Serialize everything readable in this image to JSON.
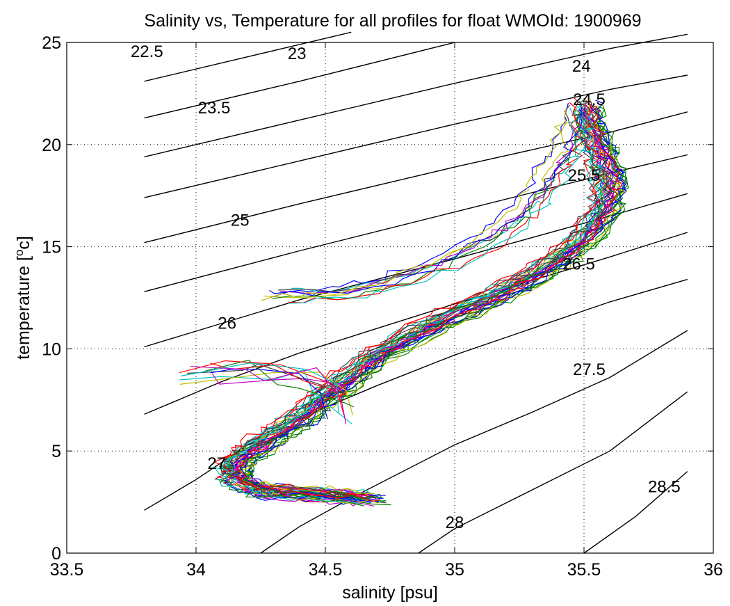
{
  "chart_data": {
    "type": "line",
    "title": "Salinity vs, Temperature for all profiles for float WMOId: 1900969",
    "xlabel": "salinity [psu]",
    "ylabel_main": "temperature [",
    "ylabel_sup": "o",
    "ylabel_tail": "c]",
    "xlim": [
      33.5,
      36
    ],
    "ylim": [
      0,
      25
    ],
    "xticks": [
      {
        "value": 33.5,
        "label": "33.5"
      },
      {
        "value": 34,
        "label": "34"
      },
      {
        "value": 34.5,
        "label": "34.5"
      },
      {
        "value": 35,
        "label": "35"
      },
      {
        "value": 35.5,
        "label": "35.5"
      },
      {
        "value": 36,
        "label": "36"
      }
    ],
    "yticks": [
      {
        "value": 0,
        "label": "0"
      },
      {
        "value": 5,
        "label": "5"
      },
      {
        "value": 10,
        "label": "10"
      },
      {
        "value": 15,
        "label": "15"
      },
      {
        "value": 20,
        "label": "20"
      },
      {
        "value": 25,
        "label": "25"
      }
    ],
    "grid": true,
    "grid_style": "dotted",
    "contours": [
      {
        "label": "22.5",
        "points": [
          [
            33.8,
            23.1
          ],
          [
            34.6,
            25.5
          ]
        ],
        "label_at": [
          33.81,
          24.55
        ]
      },
      {
        "label": "23",
        "points": [
          [
            33.8,
            21.3
          ],
          [
            34.4,
            23.1
          ],
          [
            35.0,
            25.0
          ]
        ],
        "label_at": [
          34.39,
          24.45
        ]
      },
      {
        "label": "23.5",
        "points": [
          [
            33.8,
            19.4
          ],
          [
            34.4,
            21.2
          ],
          [
            35.0,
            23.0
          ],
          [
            35.6,
            24.7
          ],
          [
            35.9,
            25.4
          ]
        ],
        "label_at": [
          34.07,
          21.8
        ]
      },
      {
        "label": "24",
        "points": [
          [
            33.8,
            17.4
          ],
          [
            34.4,
            19.2
          ],
          [
            35.0,
            21.0
          ],
          [
            35.6,
            22.7
          ],
          [
            35.9,
            23.4
          ]
        ],
        "label_at": [
          35.49,
          23.85
        ]
      },
      {
        "label": "24.5",
        "points": [
          [
            33.8,
            15.2
          ],
          [
            34.4,
            17.1
          ],
          [
            35.0,
            18.9
          ],
          [
            35.6,
            20.6
          ],
          [
            35.9,
            21.6
          ]
        ],
        "label_at": [
          35.52,
          22.2
        ]
      },
      {
        "label": "25",
        "points": [
          [
            33.8,
            12.8
          ],
          [
            34.4,
            14.8
          ],
          [
            35.0,
            16.7
          ],
          [
            35.6,
            18.6
          ],
          [
            35.9,
            19.5
          ]
        ],
        "label_at": [
          34.17,
          16.3
        ]
      },
      {
        "label": "25.5",
        "points": [
          [
            33.8,
            10.1
          ],
          [
            34.4,
            12.4
          ],
          [
            35.0,
            14.4
          ],
          [
            35.6,
            16.5
          ],
          [
            35.9,
            17.6
          ]
        ],
        "label_at": [
          35.5,
          18.5
        ]
      },
      {
        "label": "26",
        "points": [
          [
            33.8,
            6.8
          ],
          [
            34.1,
            8.4
          ],
          [
            34.4,
            9.8
          ],
          [
            35.0,
            12.2
          ],
          [
            35.6,
            14.5
          ],
          [
            35.9,
            15.7
          ]
        ],
        "label_at": [
          34.12,
          11.25
        ]
      },
      {
        "label": "26.5",
        "points": [
          [
            33.8,
            2.1
          ],
          [
            34.0,
            3.6
          ],
          [
            34.2,
            5.3
          ],
          [
            34.4,
            6.6
          ],
          [
            34.7,
            8.2
          ],
          [
            35.0,
            9.7
          ],
          [
            35.6,
            12.3
          ],
          [
            35.9,
            13.4
          ]
        ],
        "label_at": [
          35.48,
          14.15
        ]
      },
      {
        "label": "27",
        "points": [
          [
            34.25,
            0.0
          ],
          [
            34.4,
            1.3
          ],
          [
            34.6,
            2.7
          ],
          [
            35.0,
            5.3
          ],
          [
            35.3,
            6.9
          ],
          [
            35.6,
            8.6
          ],
          [
            35.9,
            10.9
          ]
        ],
        "label_at": [
          34.08,
          4.4
        ]
      },
      {
        "label": "27.5",
        "points": [
          [
            34.86,
            0.0
          ],
          [
            35.0,
            1.2
          ],
          [
            35.3,
            3.1
          ],
          [
            35.6,
            5.0
          ],
          [
            35.9,
            7.9
          ]
        ],
        "label_at": [
          35.52,
          9.0
        ]
      },
      {
        "label": "28",
        "points": [
          [
            35.5,
            0.0
          ],
          [
            35.7,
            1.8
          ],
          [
            35.9,
            4.0
          ]
        ],
        "label_at": [
          35.0,
          1.5
        ]
      },
      {
        "label": "28.5",
        "points": [],
        "label_at": [
          35.81,
          3.25
        ]
      }
    ],
    "series_colors": [
      "#0000ff",
      "#008000",
      "#ff0000",
      "#00bfbf",
      "#bf00bf",
      "#bfbf00",
      "#404040"
    ],
    "main_path": [
      [
        34.68,
        2.7
      ],
      [
        34.5,
        2.9
      ],
      [
        34.3,
        3.0
      ],
      [
        34.2,
        3.3
      ],
      [
        34.15,
        3.8
      ],
      [
        34.15,
        4.4
      ],
      [
        34.2,
        5.0
      ],
      [
        34.3,
        5.8
      ],
      [
        34.4,
        6.6
      ],
      [
        34.48,
        7.5
      ],
      [
        34.58,
        8.5
      ],
      [
        34.68,
        9.6
      ],
      [
        34.82,
        10.6
      ],
      [
        34.98,
        11.6
      ],
      [
        35.15,
        12.6
      ],
      [
        35.3,
        13.6
      ],
      [
        35.42,
        14.6
      ],
      [
        35.52,
        15.8
      ],
      [
        35.58,
        17.0
      ],
      [
        35.6,
        18.0
      ],
      [
        35.58,
        19.0
      ],
      [
        35.55,
        20.0
      ],
      [
        35.52,
        21.0
      ],
      [
        35.5,
        22.0
      ]
    ],
    "upper_path": [
      [
        34.3,
        12.6
      ],
      [
        34.55,
        12.7
      ],
      [
        34.75,
        13.3
      ],
      [
        34.95,
        14.2
      ],
      [
        35.1,
        15.2
      ],
      [
        35.22,
        16.3
      ],
      [
        35.3,
        17.3
      ],
      [
        35.36,
        18.5
      ],
      [
        35.42,
        19.6
      ],
      [
        35.45,
        20.7
      ],
      [
        35.48,
        21.8
      ]
    ],
    "wiggle_path": [
      [
        34.0,
        8.7
      ],
      [
        34.15,
        8.8
      ],
      [
        34.3,
        8.9
      ],
      [
        34.45,
        8.6
      ],
      [
        34.52,
        7.8
      ],
      [
        34.55,
        7.0
      ]
    ],
    "num_profiles": 46
  }
}
